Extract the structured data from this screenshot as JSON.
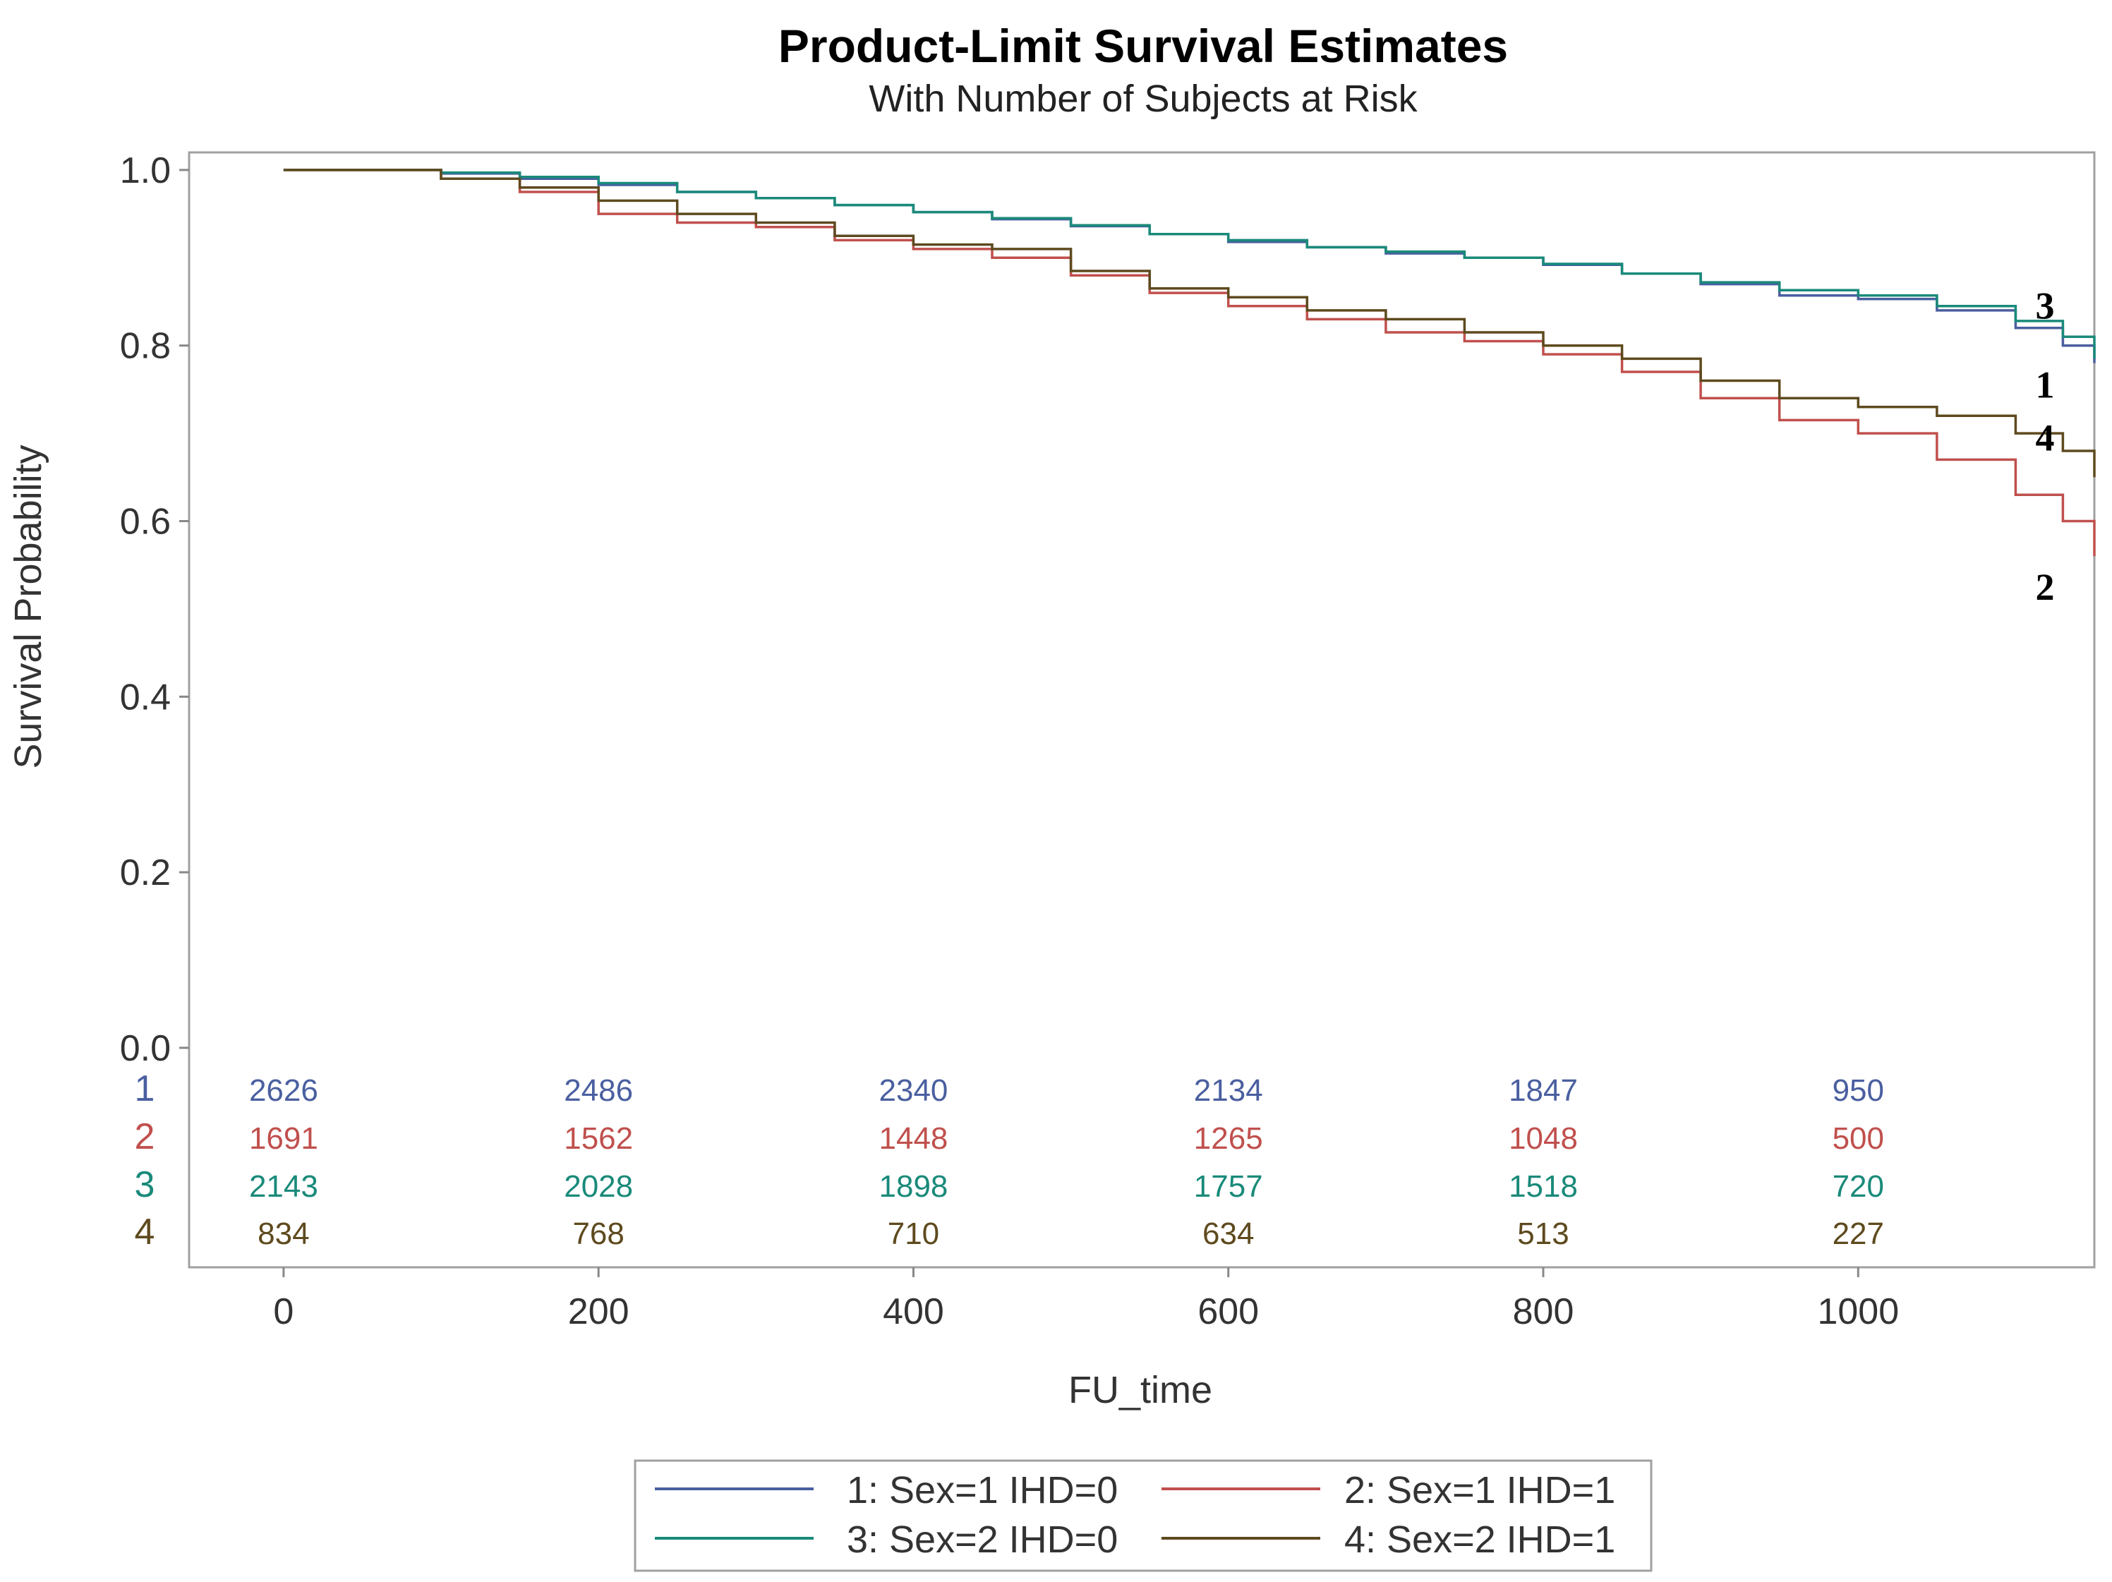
{
  "chart_data": {
    "type": "line",
    "title": "Product-Limit Survival Estimates",
    "subtitle": "With Number of Subjects at Risk",
    "xlabel": "FU_time",
    "ylabel": "Survival Probability",
    "xlim": [
      -60,
      1150
    ],
    "ylim": [
      -0.25,
      1.02
    ],
    "x_ticks": [
      0,
      200,
      400,
      600,
      800,
      1000
    ],
    "x_tick_labels": [
      "0",
      "200",
      "400",
      "600",
      "800",
      "1000"
    ],
    "y_ticks": [
      0.0,
      0.2,
      0.4,
      0.6,
      0.8,
      1.0
    ],
    "y_tick_labels": [
      "0.0",
      "0.2",
      "0.4",
      "0.6",
      "0.8",
      "1.0"
    ],
    "series": [
      {
        "id": "1",
        "name": "1: Sex=1 IHD=0",
        "color": "#4a5fa0",
        "end_label": "1",
        "x": [
          0,
          80,
          100,
          150,
          200,
          250,
          300,
          350,
          400,
          450,
          500,
          550,
          600,
          650,
          700,
          750,
          800,
          850,
          900,
          950,
          1000,
          1050,
          1100,
          1130,
          1150
        ],
        "y": [
          1.0,
          1.0,
          0.996,
          0.99,
          0.983,
          0.975,
          0.968,
          0.96,
          0.952,
          0.944,
          0.936,
          0.927,
          0.918,
          0.912,
          0.905,
          0.9,
          0.892,
          0.882,
          0.87,
          0.857,
          0.853,
          0.84,
          0.82,
          0.8,
          0.78
        ]
      },
      {
        "id": "2",
        "name": "2: Sex=1 IHD=1",
        "color": "#c0504d",
        "end_label": "2",
        "x": [
          0,
          80,
          100,
          150,
          200,
          250,
          300,
          350,
          400,
          450,
          500,
          550,
          600,
          650,
          700,
          750,
          800,
          850,
          900,
          950,
          1000,
          1050,
          1100,
          1130,
          1150
        ],
        "y": [
          1.0,
          1.0,
          0.99,
          0.975,
          0.95,
          0.94,
          0.935,
          0.92,
          0.91,
          0.9,
          0.88,
          0.86,
          0.845,
          0.83,
          0.815,
          0.805,
          0.79,
          0.77,
          0.74,
          0.715,
          0.7,
          0.67,
          0.63,
          0.6,
          0.56
        ]
      },
      {
        "id": "3",
        "name": "3: Sex=2 IHD=0",
        "color": "#1a8a7a",
        "end_label": "3",
        "x": [
          0,
          80,
          100,
          150,
          200,
          250,
          300,
          350,
          400,
          450,
          500,
          550,
          600,
          650,
          700,
          750,
          800,
          850,
          900,
          950,
          1000,
          1050,
          1100,
          1130,
          1150
        ],
        "y": [
          1.0,
          1.0,
          0.997,
          0.992,
          0.985,
          0.975,
          0.968,
          0.96,
          0.952,
          0.945,
          0.937,
          0.927,
          0.92,
          0.912,
          0.907,
          0.9,
          0.893,
          0.882,
          0.872,
          0.863,
          0.857,
          0.845,
          0.828,
          0.81,
          0.785
        ]
      },
      {
        "id": "4",
        "name": "4: Sex=2 IHD=1",
        "color": "#5e4a1e",
        "end_label": "4",
        "x": [
          0,
          80,
          100,
          150,
          200,
          250,
          300,
          350,
          400,
          450,
          500,
          550,
          600,
          650,
          700,
          750,
          800,
          850,
          900,
          950,
          1000,
          1050,
          1100,
          1130,
          1150
        ],
        "y": [
          1.0,
          1.0,
          0.99,
          0.98,
          0.965,
          0.95,
          0.94,
          0.925,
          0.915,
          0.91,
          0.885,
          0.865,
          0.855,
          0.84,
          0.83,
          0.815,
          0.8,
          0.785,
          0.76,
          0.74,
          0.73,
          0.72,
          0.7,
          0.68,
          0.65
        ]
      }
    ],
    "at_risk": {
      "times": [
        0,
        200,
        400,
        600,
        800,
        1000
      ],
      "rows": [
        {
          "label": "1",
          "color": "#4a5fa0",
          "values": [
            "2626",
            "2486",
            "2340",
            "2134",
            "1847",
            "950"
          ]
        },
        {
          "label": "2",
          "color": "#c0504d",
          "values": [
            "1691",
            "1562",
            "1448",
            "1265",
            "1048",
            "500"
          ]
        },
        {
          "label": "3",
          "color": "#1a8a7a",
          "values": [
            "2143",
            "2028",
            "1898",
            "1757",
            "1518",
            "720"
          ]
        },
        {
          "label": "4",
          "color": "#5e4a1e",
          "values": [
            "834",
            "768",
            "710",
            "634",
            "513",
            "227"
          ]
        }
      ]
    },
    "legend": [
      {
        "label": "1: Sex=1 IHD=0",
        "color": "#4a5fa0"
      },
      {
        "label": "2: Sex=1 IHD=1",
        "color": "#c0504d"
      },
      {
        "label": "3: Sex=2 IHD=0",
        "color": "#1a8a7a"
      },
      {
        "label": "4: Sex=2 IHD=1",
        "color": "#5e4a1e"
      }
    ]
  }
}
